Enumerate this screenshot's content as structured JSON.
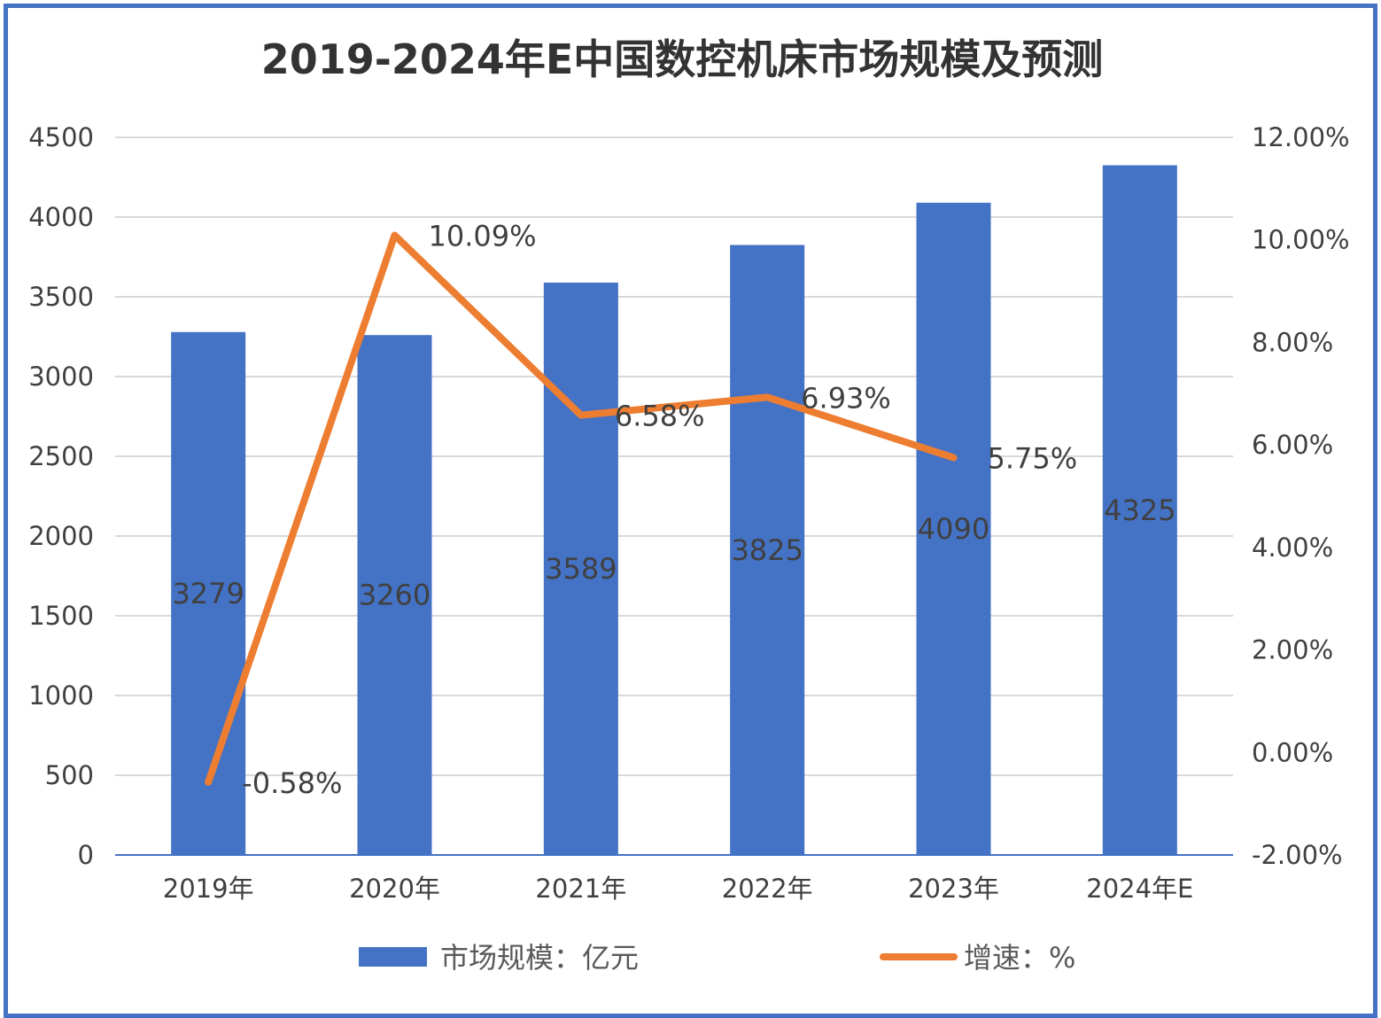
{
  "chart_data": {
    "type": "bar+line",
    "title": "2019-2024年E中国数控机床市场规模及预测",
    "categories": [
      "2019年",
      "2020年",
      "2021年",
      "2022年",
      "2023年",
      "2024年E"
    ],
    "series": [
      {
        "name": "市场规模：亿元",
        "type": "bar",
        "axis": "left",
        "values": [
          3279,
          3260,
          3589,
          3825,
          4090,
          4325
        ],
        "labels": [
          "3279",
          "3260",
          "3589",
          "3825",
          "4090",
          "4325"
        ],
        "color": "#4472C4"
      },
      {
        "name": "增速：%",
        "type": "line",
        "axis": "right",
        "values": [
          -0.58,
          10.09,
          6.58,
          6.93,
          5.75,
          null
        ],
        "labels": [
          "-0.58%",
          "10.09%",
          "6.58%",
          "6.93%",
          "5.75%",
          ""
        ],
        "color": "#ED7D31"
      }
    ],
    "left_axis": {
      "ylim": [
        0,
        4500
      ],
      "ticks": [
        "0",
        "500",
        "1000",
        "1500",
        "2000",
        "2500",
        "3000",
        "3500",
        "4000",
        "4500"
      ]
    },
    "right_axis": {
      "ylim": [
        -2,
        12
      ],
      "ticks": [
        "-2.00%",
        "0.00%",
        "2.00%",
        "4.00%",
        "6.00%",
        "8.00%",
        "10.00%",
        "12.00%"
      ]
    },
    "grid": true,
    "legend": "bottom"
  }
}
